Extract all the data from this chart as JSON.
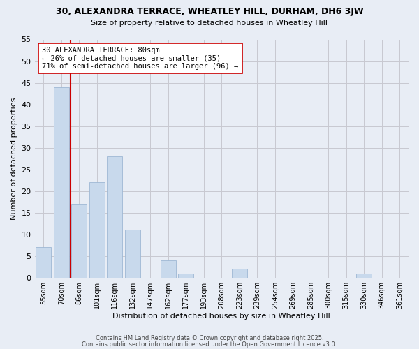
{
  "title1": "30, ALEXANDRA TERRACE, WHEATLEY HILL, DURHAM, DH6 3JW",
  "title2": "Size of property relative to detached houses in Wheatley Hill",
  "xlabel": "Distribution of detached houses by size in Wheatley Hill",
  "ylabel": "Number of detached properties",
  "categories": [
    "55sqm",
    "70sqm",
    "86sqm",
    "101sqm",
    "116sqm",
    "132sqm",
    "147sqm",
    "162sqm",
    "177sqm",
    "193sqm",
    "208sqm",
    "223sqm",
    "239sqm",
    "254sqm",
    "269sqm",
    "285sqm",
    "300sqm",
    "315sqm",
    "330sqm",
    "346sqm",
    "361sqm"
  ],
  "values": [
    7,
    44,
    17,
    22,
    28,
    11,
    0,
    4,
    1,
    0,
    0,
    2,
    0,
    0,
    0,
    0,
    0,
    0,
    1,
    0,
    0
  ],
  "bar_color": "#c8d9ec",
  "bar_edge_color": "#9eb8d4",
  "grid_color": "#c8c8d0",
  "bg_color": "#e8edf5",
  "vline_color": "#cc0000",
  "annotation_text": "30 ALEXANDRA TERRACE: 80sqm\n← 26% of detached houses are smaller (35)\n71% of semi-detached houses are larger (96) →",
  "annotation_box_color": "#ffffff",
  "annotation_box_edge": "#cc0000",
  "ylim": [
    0,
    55
  ],
  "yticks": [
    0,
    5,
    10,
    15,
    20,
    25,
    30,
    35,
    40,
    45,
    50,
    55
  ],
  "footer1": "Contains HM Land Registry data © Crown copyright and database right 2025.",
  "footer2": "Contains public sector information licensed under the Open Government Licence v3.0."
}
